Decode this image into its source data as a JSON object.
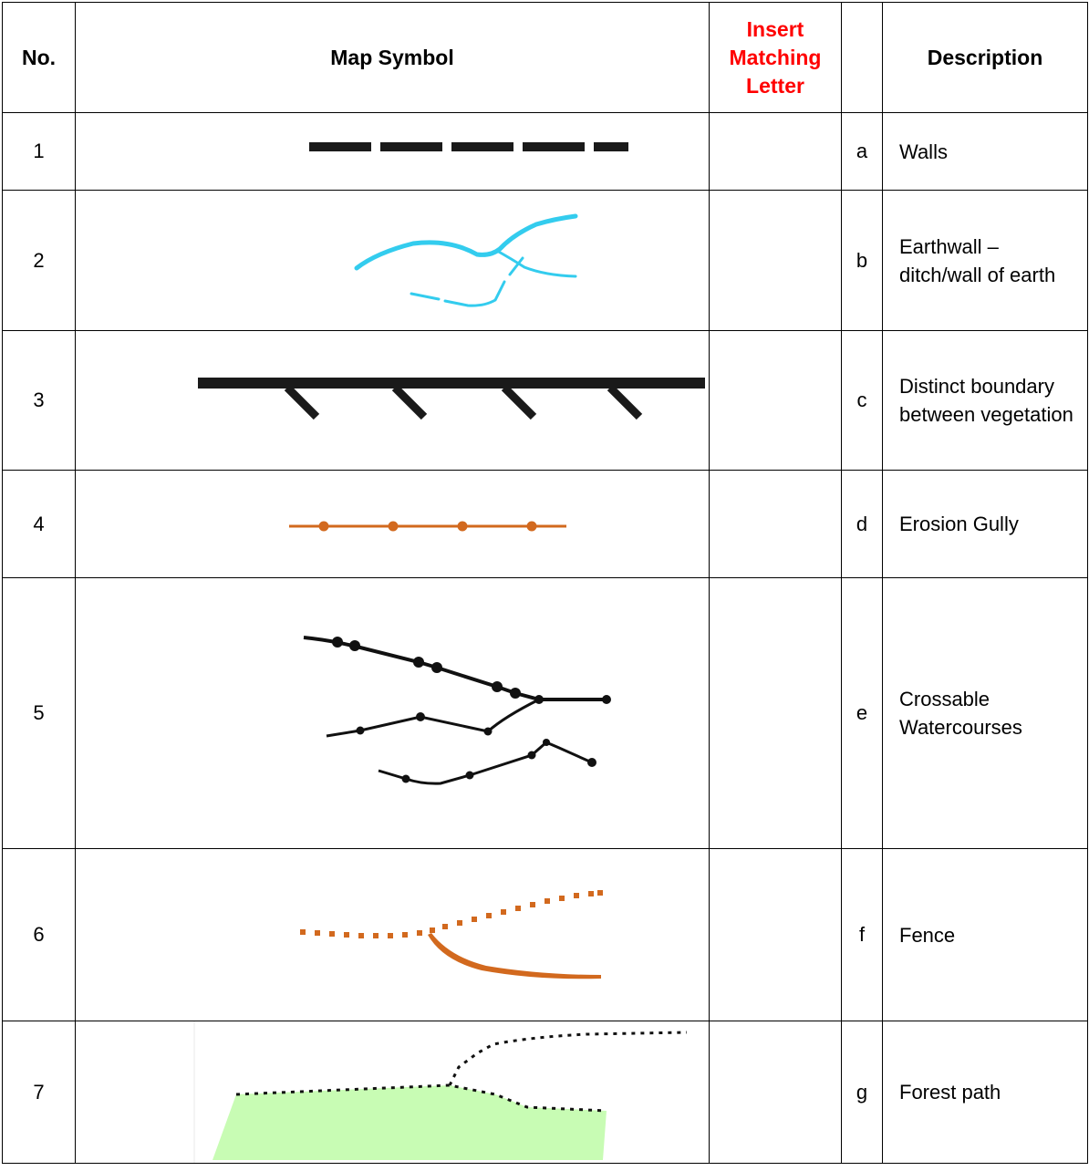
{
  "header": {
    "no": "No.",
    "symbol": "Map Symbol",
    "insert": "Insert Matching Letter",
    "description": "Description"
  },
  "rows": [
    {
      "no": "1",
      "letter": "a",
      "description": "Walls"
    },
    {
      "no": "2",
      "letter": "b",
      "description": "Earthwall – ditch/wall of earth"
    },
    {
      "no": "3",
      "letter": "c",
      "description": "Distinct boundary between vegetation"
    },
    {
      "no": "4",
      "letter": "d",
      "description": "Erosion Gully"
    },
    {
      "no": "5",
      "letter": "e",
      "description": "Crossable Watercourses"
    },
    {
      "no": "6",
      "letter": "f",
      "description": "Fence"
    },
    {
      "no": "7",
      "letter": "g",
      "description": "Forest path"
    }
  ],
  "colors": {
    "header_red": "#ff0000",
    "blue_symbol": "#33ccee",
    "orange_symbol": "#d2691e",
    "green_fill": "#c8fcb4"
  },
  "icons": [
    "dashed-line-symbol",
    "blue-stream-symbol",
    "ticked-line-symbol",
    "dotted-orange-line-symbol",
    "dotted-black-streams-symbol",
    "orange-dotted-fork-symbol",
    "dotted-boundary-with-green-area-symbol"
  ]
}
